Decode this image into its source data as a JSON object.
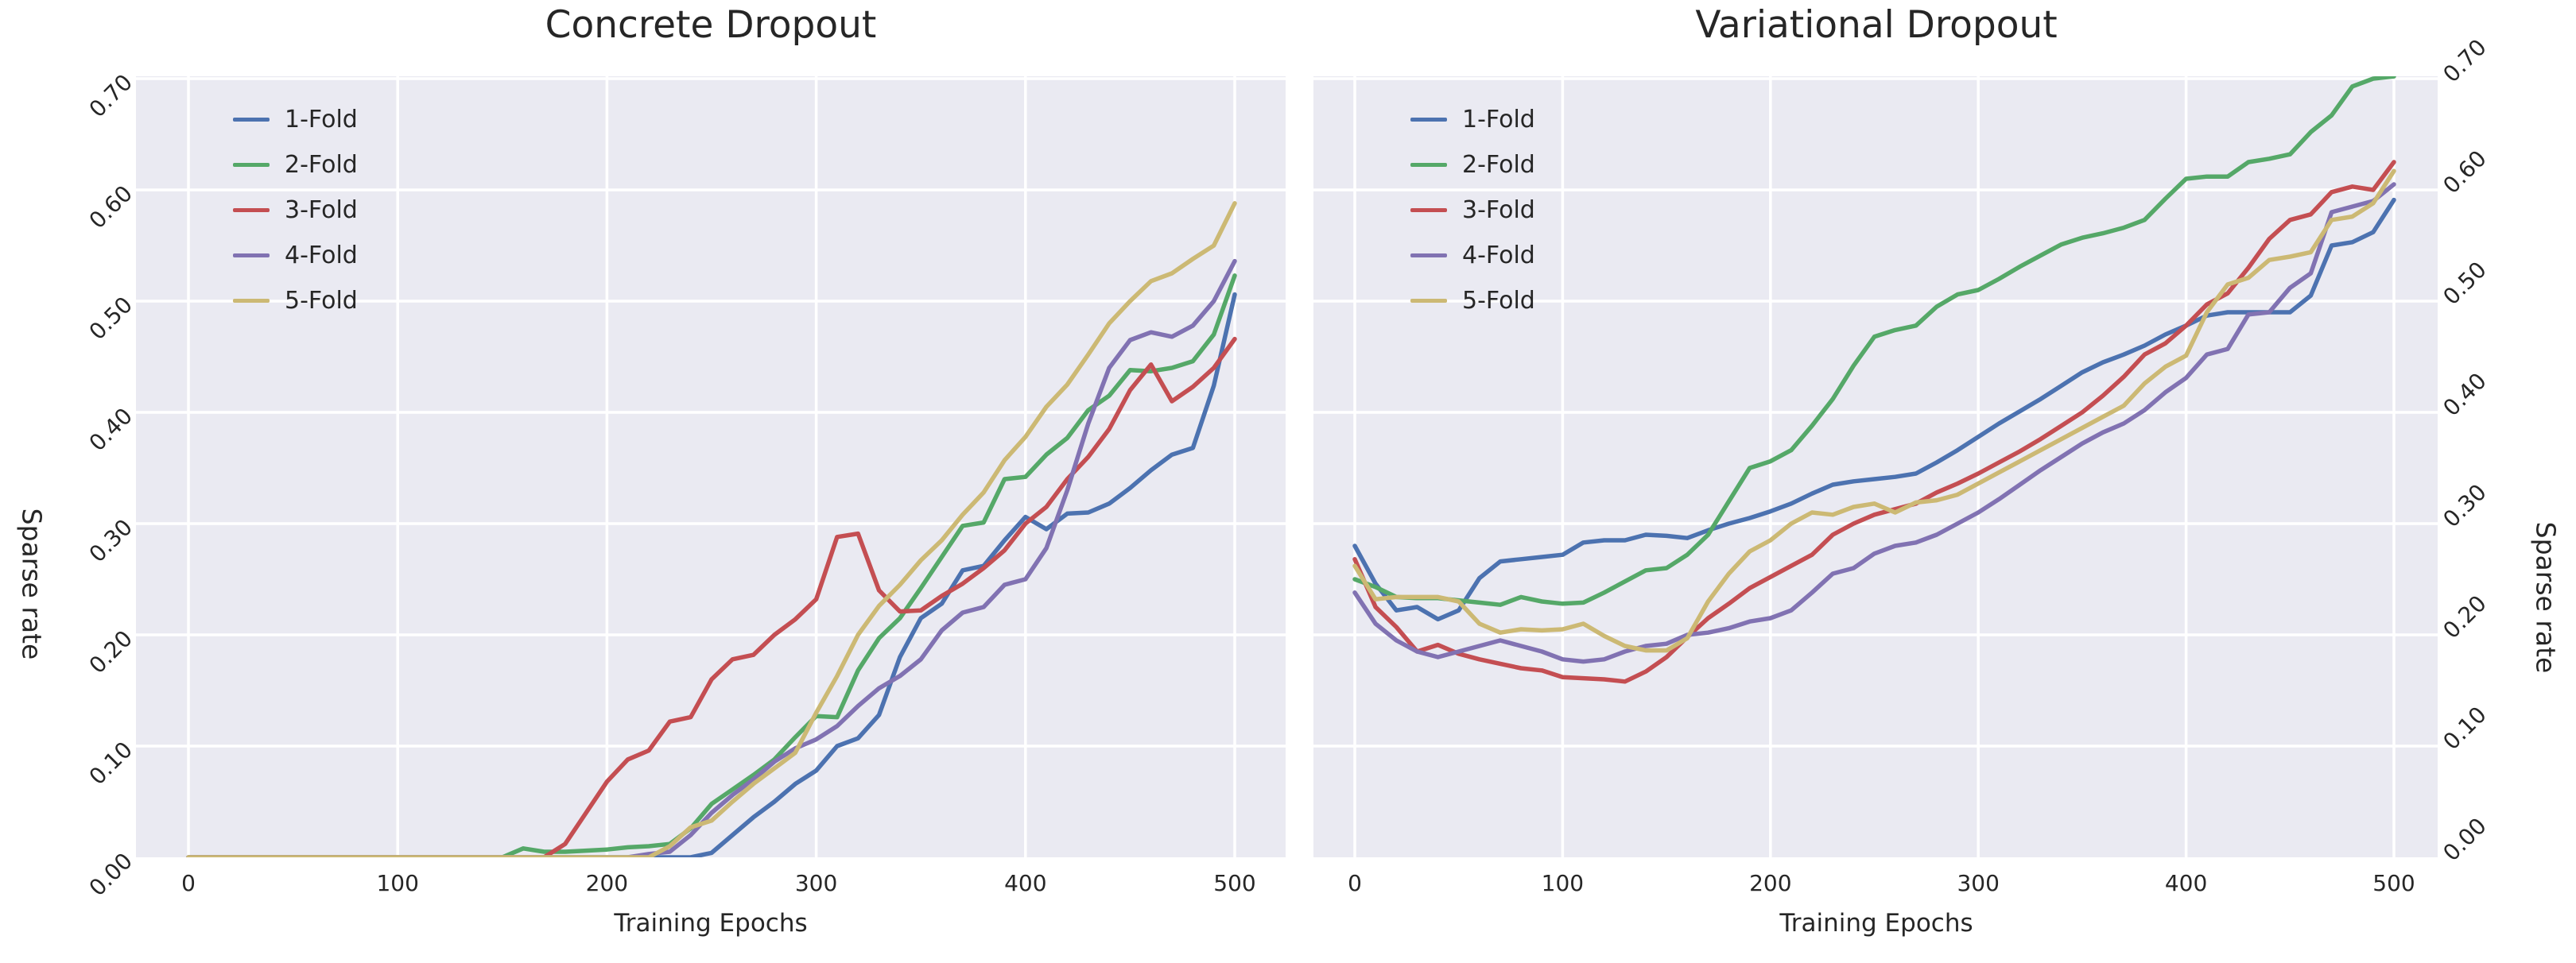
{
  "figure": {
    "background": "#ffffff",
    "panel_background": "#EAEAF2",
    "grid_color": "#ffffff",
    "text_color": "#262626"
  },
  "palette": {
    "fold1": "#4C72B0",
    "fold2": "#55A868",
    "fold3": "#C44E52",
    "fold4": "#8172B2",
    "fold5": "#CCB974"
  },
  "chart_data": [
    {
      "type": "line",
      "title": "Concrete Dropout",
      "xlabel": "Training Epochs",
      "ylabel": "Sparse rate",
      "x_ticks": [
        0,
        100,
        200,
        300,
        400,
        500
      ],
      "y_ticks": [
        "0.00",
        "0.10",
        "0.20",
        "0.30",
        "0.40",
        "0.50",
        "0.60",
        "0.70"
      ],
      "xlim": [
        -25,
        525
      ],
      "ylim": [
        0,
        0.702
      ],
      "grid": true,
      "legend_position": "upper left",
      "x_start": 0,
      "x_step": 10,
      "series": [
        {
          "name": "1-Fold",
          "color_key": "fold1",
          "values": [
            0,
            0,
            0,
            0,
            0,
            0,
            0,
            0,
            0,
            0,
            0,
            0,
            0,
            0,
            0,
            0,
            0,
            0,
            0,
            0,
            0,
            0,
            0,
            0,
            0,
            0.004,
            0.02,
            0.036,
            0.05,
            0.066,
            0.078,
            0.1,
            0.107,
            0.128,
            0.18,
            0.215,
            0.228,
            0.258,
            0.262,
            0.285,
            0.306,
            0.295,
            0.309,
            0.31,
            0.318,
            0.332,
            0.348,
            0.362,
            0.368,
            0.424,
            0.506
          ]
        },
        {
          "name": "2-Fold",
          "color_key": "fold2",
          "values": [
            0,
            0,
            0,
            0,
            0,
            0,
            0,
            0,
            0,
            0,
            0,
            0,
            0,
            0,
            0,
            0,
            0.008,
            0.005,
            0.005,
            0.006,
            0.007,
            0.009,
            0.01,
            0.012,
            0.026,
            0.048,
            0.061,
            0.074,
            0.088,
            0.108,
            0.127,
            0.126,
            0.168,
            0.197,
            0.215,
            0.242,
            0.27,
            0.298,
            0.301,
            0.34,
            0.342,
            0.362,
            0.377,
            0.402,
            0.415,
            0.438,
            0.437,
            0.44,
            0.446,
            0.47,
            0.523
          ]
        },
        {
          "name": "3-Fold",
          "color_key": "fold3",
          "values": [
            0,
            0,
            0,
            0,
            0,
            0,
            0,
            0,
            0,
            0,
            0,
            0,
            0,
            0,
            0,
            0,
            0,
            0,
            0.012,
            0.04,
            0.068,
            0.088,
            0.096,
            0.122,
            0.126,
            0.16,
            0.178,
            0.182,
            0.2,
            0.214,
            0.232,
            0.288,
            0.291,
            0.24,
            0.221,
            0.222,
            0.235,
            0.246,
            0.26,
            0.276,
            0.3,
            0.315,
            0.34,
            0.36,
            0.385,
            0.42,
            0.443,
            0.41,
            0.423,
            0.44,
            0.466
          ]
        },
        {
          "name": "4-Fold",
          "color_key": "fold4",
          "values": [
            0,
            0,
            0,
            0,
            0,
            0,
            0,
            0,
            0,
            0,
            0,
            0,
            0,
            0,
            0,
            0,
            0,
            0,
            0,
            0,
            0,
            0,
            0.003,
            0.005,
            0.02,
            0.04,
            0.056,
            0.07,
            0.086,
            0.098,
            0.106,
            0.118,
            0.136,
            0.152,
            0.163,
            0.178,
            0.204,
            0.22,
            0.225,
            0.245,
            0.25,
            0.278,
            0.33,
            0.39,
            0.44,
            0.465,
            0.472,
            0.468,
            0.478,
            0.5,
            0.536
          ]
        },
        {
          "name": "5-Fold",
          "color_key": "fold5",
          "values": [
            0,
            0,
            0,
            0,
            0,
            0,
            0,
            0,
            0,
            0,
            0,
            0,
            0,
            0,
            0,
            0,
            0,
            0,
            0,
            0,
            0,
            0,
            0,
            0.01,
            0.027,
            0.033,
            0.05,
            0.066,
            0.08,
            0.094,
            0.13,
            0.163,
            0.2,
            0.226,
            0.245,
            0.267,
            0.285,
            0.308,
            0.328,
            0.357,
            0.378,
            0.405,
            0.425,
            0.452,
            0.48,
            0.5,
            0.518,
            0.525,
            0.538,
            0.55,
            0.588
          ]
        }
      ]
    },
    {
      "type": "line",
      "title": "Variational Dropout",
      "xlabel": "Training Epochs",
      "ylabel": "Sparse rate",
      "x_ticks": [
        0,
        100,
        200,
        300,
        400,
        500
      ],
      "y_ticks": [
        "0.00",
        "0.10",
        "0.20",
        "0.30",
        "0.40",
        "0.50",
        "0.60",
        "0.70"
      ],
      "xlim": [
        -25,
        525
      ],
      "ylim": [
        0,
        0.702
      ],
      "grid": true,
      "legend_position": "upper left",
      "x_start": 0,
      "x_step": 10,
      "series": [
        {
          "name": "1-Fold",
          "color_key": "fold1",
          "values": [
            0.28,
            0.246,
            0.222,
            0.225,
            0.214,
            0.222,
            0.251,
            0.266,
            0.268,
            0.27,
            0.272,
            0.283,
            0.285,
            0.285,
            0.29,
            0.289,
            0.287,
            0.294,
            0.3,
            0.305,
            0.311,
            0.318,
            0.327,
            0.335,
            0.338,
            0.34,
            0.342,
            0.345,
            0.355,
            0.366,
            0.378,
            0.39,
            0.401,
            0.412,
            0.424,
            0.436,
            0.445,
            0.452,
            0.46,
            0.47,
            0.478,
            0.487,
            0.49,
            0.49,
            0.49,
            0.49,
            0.505,
            0.55,
            0.553,
            0.562,
            0.591
          ]
        },
        {
          "name": "2-Fold",
          "color_key": "fold2",
          "values": [
            0.25,
            0.243,
            0.234,
            0.233,
            0.233,
            0.231,
            0.229,
            0.227,
            0.234,
            0.23,
            0.228,
            0.229,
            0.238,
            0.248,
            0.258,
            0.26,
            0.272,
            0.29,
            0.32,
            0.35,
            0.356,
            0.366,
            0.388,
            0.412,
            0.442,
            0.468,
            0.474,
            0.478,
            0.495,
            0.506,
            0.51,
            0.52,
            0.531,
            0.541,
            0.551,
            0.557,
            0.561,
            0.566,
            0.573,
            0.592,
            0.61,
            0.612,
            0.612,
            0.625,
            0.628,
            0.632,
            0.652,
            0.667,
            0.693,
            0.7,
            0.702
          ]
        },
        {
          "name": "3-Fold",
          "color_key": "fold3",
          "values": [
            0.268,
            0.225,
            0.207,
            0.185,
            0.191,
            0.183,
            0.178,
            0.174,
            0.17,
            0.168,
            0.162,
            0.161,
            0.16,
            0.158,
            0.167,
            0.18,
            0.198,
            0.215,
            0.228,
            0.242,
            0.252,
            0.262,
            0.272,
            0.29,
            0.3,
            0.308,
            0.313,
            0.318,
            0.328,
            0.336,
            0.345,
            0.355,
            0.365,
            0.376,
            0.388,
            0.4,
            0.415,
            0.432,
            0.452,
            0.462,
            0.478,
            0.497,
            0.507,
            0.53,
            0.556,
            0.573,
            0.578,
            0.598,
            0.603,
            0.6,
            0.625
          ]
        },
        {
          "name": "4-Fold",
          "color_key": "fold4",
          "values": [
            0.238,
            0.21,
            0.195,
            0.185,
            0.18,
            0.185,
            0.19,
            0.195,
            0.19,
            0.185,
            0.178,
            0.176,
            0.178,
            0.185,
            0.19,
            0.192,
            0.2,
            0.202,
            0.206,
            0.212,
            0.215,
            0.222,
            0.238,
            0.255,
            0.26,
            0.273,
            0.28,
            0.283,
            0.29,
            0.3,
            0.31,
            0.322,
            0.335,
            0.348,
            0.36,
            0.372,
            0.382,
            0.39,
            0.402,
            0.418,
            0.431,
            0.452,
            0.457,
            0.488,
            0.49,
            0.512,
            0.525,
            0.58,
            0.585,
            0.59,
            0.605
          ]
        },
        {
          "name": "5-Fold",
          "color_key": "fold5",
          "values": [
            0.262,
            0.232,
            0.234,
            0.234,
            0.234,
            0.23,
            0.21,
            0.202,
            0.205,
            0.204,
            0.205,
            0.21,
            0.199,
            0.19,
            0.186,
            0.186,
            0.197,
            0.23,
            0.255,
            0.275,
            0.285,
            0.3,
            0.31,
            0.308,
            0.315,
            0.318,
            0.31,
            0.319,
            0.321,
            0.326,
            0.336,
            0.346,
            0.356,
            0.366,
            0.376,
            0.386,
            0.396,
            0.406,
            0.426,
            0.441,
            0.451,
            0.49,
            0.515,
            0.521,
            0.537,
            0.54,
            0.544,
            0.573,
            0.576,
            0.588,
            0.617
          ]
        }
      ]
    }
  ]
}
